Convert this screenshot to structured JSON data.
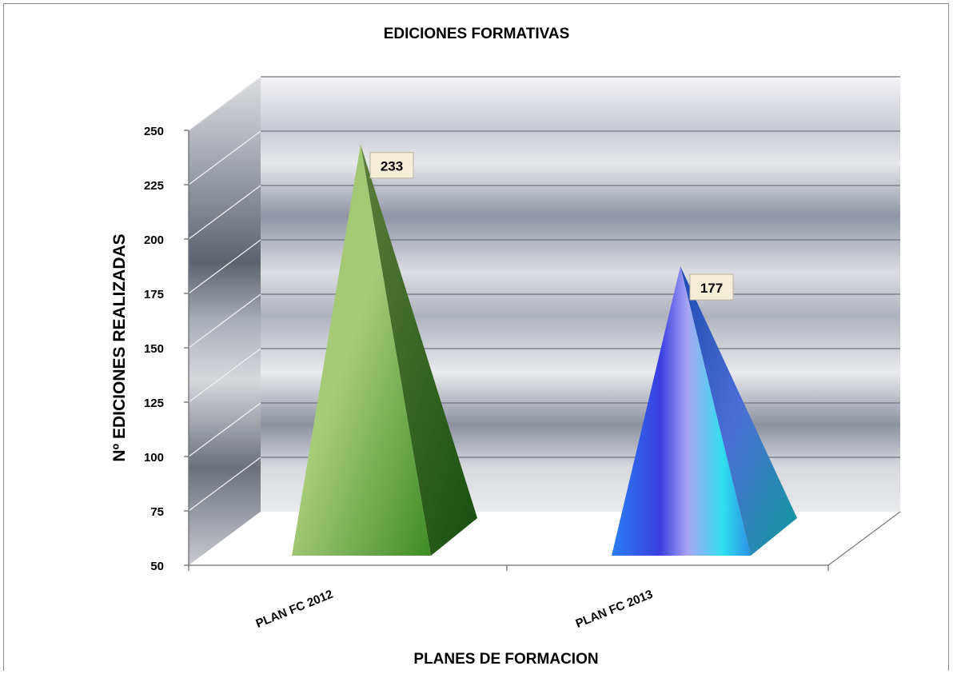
{
  "chart_data": {
    "type": "bar",
    "bar_shape": "pyramid-3d",
    "title": "EDICIONES FORMATIVAS",
    "xlabel": "PLANES DE FORMACION",
    "ylabel": "Nº  EDICIONES REALIZADAS",
    "categories": [
      "PLAN FC 2012",
      "PLAN FC 2013"
    ],
    "values": [
      233,
      177
    ],
    "data_labels": [
      "233",
      "177"
    ],
    "ylim": [
      50,
      250
    ],
    "yticks": [
      50,
      75,
      100,
      125,
      150,
      175,
      200,
      225,
      250
    ],
    "grid": true,
    "legend": "none",
    "colors": {
      "PLAN FC 2012": "#6f9a3c",
      "PLAN FC 2013": "#3a7ff0",
      "back_wall": "#a7acba",
      "side_wall": "#8e939e",
      "label_box": "#f5efd9"
    }
  }
}
